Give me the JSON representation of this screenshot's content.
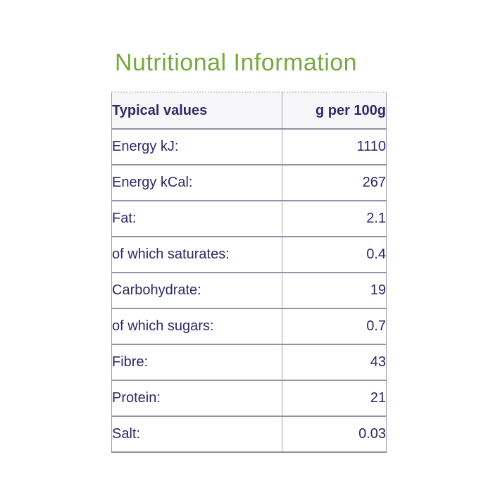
{
  "title": {
    "text": "Nutritional Information",
    "color": "#76a93f"
  },
  "table": {
    "header": {
      "col1": "Typical values",
      "col2": "g per 100g"
    },
    "rows": [
      {
        "label": "Energy kJ:",
        "value": "1110"
      },
      {
        "label": "Energy kCal:",
        "value": "267"
      },
      {
        "label": "Fat:",
        "value": "2.1"
      },
      {
        "label": "of which saturates:",
        "value": "0.4"
      },
      {
        "label": "Carbohydrate:",
        "value": "19"
      },
      {
        "label": "of which sugars:",
        "value": "0.7"
      },
      {
        "label": "Fibre:",
        "value": "43"
      },
      {
        "label": "Protein:",
        "value": "21"
      },
      {
        "label": "Salt:",
        "value": "0.03"
      }
    ],
    "colors": {
      "text": "#2d2a68",
      "rule": "#9193a6",
      "outer_border": "#a3a3b3",
      "top_dotted_border": "#c9c9d3",
      "header_background": "#f6f6f8"
    }
  }
}
